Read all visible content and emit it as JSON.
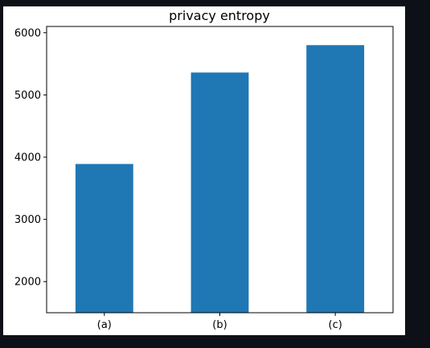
{
  "chart_data": {
    "type": "bar",
    "title": "privacy entropy",
    "xlabel": "",
    "ylabel": "",
    "categories": [
      "(a)",
      "(b)",
      "(c)"
    ],
    "values": [
      3890,
      5360,
      5800
    ],
    "ylim": [
      1500,
      6100
    ],
    "yticks": [
      2000,
      3000,
      4000,
      5000,
      6000
    ],
    "grid": false,
    "legend": "none",
    "colors": {
      "bar": "#1f77b4",
      "axes": "#000000",
      "background": "#ffffff",
      "page": "#0d1117"
    }
  }
}
